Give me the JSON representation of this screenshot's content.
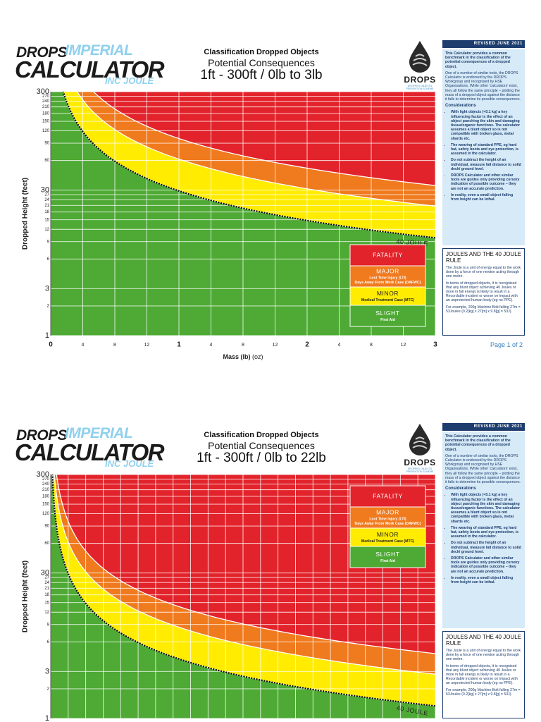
{
  "pages": [
    {
      "logo": {
        "drops": "DROPS",
        "imperial": "IMPERIAL",
        "calculator": "CALCULATOR",
        "inc_joule": "INC JOULE"
      },
      "header": {
        "kicker": "Classification Dropped Objects",
        "subtitle": "Potential Consequences",
        "title": "1ft - 300ft / 0lb to 3lb"
      },
      "brand": {
        "name": "DROPS",
        "tagline": "DROPPED OBJECTS PREVENTION SCHEME"
      },
      "sidebar": {
        "revised": "REVISED JUNE 2021",
        "intro": "This Calculator provides a common benchmark in the classification of the potential consequences of a dropped object.",
        "body": "One of a number of similar tools, the DROPS Calculator is endorsed by the DROPS Workgroup and recognised by HSE Organisations. While other 'calculators' exist, they all follow the same principle – plotting the mass of a dropped object against the distance it falls to determine its possible consequences.",
        "considerations_title": "Considerations",
        "bullets": [
          "With light objects (<0.1 kg) a key influencing factor is the effect of an object punching the skin and damaging tissue/organic functions. The calculator assumes a blunt object so is not compatible with broken glass, metal shards etc.",
          "The wearing of standard PPE, eg hard hat, safety boots and eye protection, is assumed in the calculator.",
          "Do not subtract the height of an individual, measure fall distance to solid deck/ ground level.",
          "DROPS Calculator and other similar tools are guides only providing cursory indication of possible outcome – they are not an accurate prediction.",
          "In reality, even a small object falling from height can be lethal."
        ],
        "rule_title": "JOULES AND THE 40 JOULE RULE",
        "rule_paragraphs": [
          "The Joule is a unit of energy equal to the work done by a force of one newton acting through one metre.",
          "In terms of dropped objects, it is recognised that any blunt object achieving 40 Joules or more in fall energy is likely to result in a Recordable incident or worse on impact with an unprotected human body (eg no PPE).",
          "For example, 200g Machine Bolt falling 27m = 53Joules (0.2[kg] x 27[m] x 9.8[g] = 53J)."
        ]
      },
      "legend": [
        {
          "label": "FATALITY",
          "color": "#e3232b"
        },
        {
          "label": "MAJOR",
          "sub": [
            "Lost Time Injury (LTI)",
            "Days Away From Work Case (DAFWC)"
          ],
          "color": "#f07a1e"
        },
        {
          "label": "MINOR",
          "sub": [
            "Medical Treatment Case (MTC)"
          ],
          "color": "#ffec00"
        },
        {
          "label": "SLIGHT",
          "sub": [
            "First Aid"
          ],
          "color": "#4eaa34"
        }
      ],
      "chart_data": {
        "type": "area",
        "y_label": "Dropped Height (feet)",
        "x_label": "Mass (lb)",
        "x_unit_label": "(oz)",
        "curve_label": "40 JOULE",
        "legend_corner": "lower right",
        "grid": true,
        "yscale": "log",
        "xlim": [
          0,
          3
        ],
        "ylim": [
          1,
          300
        ],
        "xticks": [
          0,
          {
            "value": 0.25,
            "label": "4"
          },
          {
            "value": 0.5,
            "label": "8"
          },
          {
            "value": 0.75,
            "label": "12"
          },
          1,
          {
            "value": 1.25,
            "label": "4"
          },
          {
            "value": 1.5,
            "label": "8"
          },
          {
            "value": 1.75,
            "label": "12"
          },
          2,
          {
            "value": 2.25,
            "label": "4"
          },
          {
            "value": 2.5,
            "label": "8"
          },
          {
            "value": 2.75,
            "label": "12"
          },
          3
        ],
        "yticks": [
          1,
          2,
          3,
          6,
          9,
          12,
          15,
          18,
          21,
          24,
          27,
          30,
          60,
          90,
          120,
          150,
          180,
          210,
          240,
          270,
          300
        ]
      },
      "page_label": "Page 1 of 2"
    },
    {
      "logo": {
        "drops": "DROPS",
        "imperial": "IMPERIAL",
        "calculator": "CALCULATOR",
        "inc_joule": "INC JOULE"
      },
      "header": {
        "kicker": "Classification Dropped Objects",
        "subtitle": "Potential Consequences",
        "title": "1ft - 300ft / 0lb to 22lb"
      },
      "brand": {
        "name": "DROPS",
        "tagline": "DROPPED OBJECTS PREVENTION SCHEME"
      },
      "sidebar": {
        "revised": "REVISED JUNE 2021",
        "intro": "This Calculator provides a common benchmark in the classification of the potential consequences of a dropped object.",
        "body": "One of a number of similar tools, the DROPS Calculator is endorsed by the DROPS Workgroup and recognised by HSE Organisations. While other 'calculators' exist, they all follow the same principle – plotting the mass of a dropped object against the distance it falls to determine its possible consequences.",
        "considerations_title": "Considerations",
        "bullets": [
          "With light objects (<0.1 kg) a key influencing factor is the effect of an object punching the skin and damaging tissue/organic functions. The calculator assumes a blunt object so is not compatible with broken glass, metal shards etc.",
          "The wearing of standard PPE, eg hard hat, safety boots and eye protection, is assumed in the calculator.",
          "Do not subtract the height of an individual, measure fall distance to solid deck/ ground level.",
          "DROPS Calculator and other similar tools are guides only providing cursory indication of possible outcome – they are not an accurate prediction.",
          "In reality, even a small object falling from height can be lethal."
        ],
        "rule_title": "JOULES AND THE 40 JOULE RULE",
        "rule_paragraphs": [
          "The Joule is a unit of energy equal to the work done by a force of one newton acting through one metre.",
          "In terms of dropped objects, it is recognised that any blunt object achieving 40 Joules or more in fall energy is likely to result in a Recordable incident or worse on impact with an unprotected human body (eg no PPE).",
          "For example, 200g Machine Bolt falling 27m = 53Joules (0.2[kg] x 27[m] x 9.8[g] = 53J)."
        ]
      },
      "legend": [
        {
          "label": "FATALITY",
          "color": "#e3232b"
        },
        {
          "label": "MAJOR",
          "sub": [
            "Lost Time Injury (LTI)",
            "Days Away From Work Case (DAFWC)"
          ],
          "color": "#f07a1e"
        },
        {
          "label": "MINOR",
          "sub": [
            "Medical Treatment Case (MTC)"
          ],
          "color": "#ffec00"
        },
        {
          "label": "SLIGHT",
          "sub": [
            "First Aid"
          ],
          "color": "#4eaa34"
        }
      ],
      "chart_data": {
        "type": "area",
        "y_label": "Dropped Height (feet)",
        "curve_label": "40 JOULE",
        "legend_corner": "upper right",
        "grid": true,
        "yscale": "log",
        "xlim": [
          0,
          22
        ],
        "ylim": [
          1,
          300
        ],
        "yticks": [
          1,
          2,
          3,
          6,
          9,
          12,
          15,
          18,
          21,
          24,
          27,
          30,
          60,
          90,
          120,
          150,
          180,
          210,
          240,
          270,
          300
        ]
      }
    }
  ]
}
